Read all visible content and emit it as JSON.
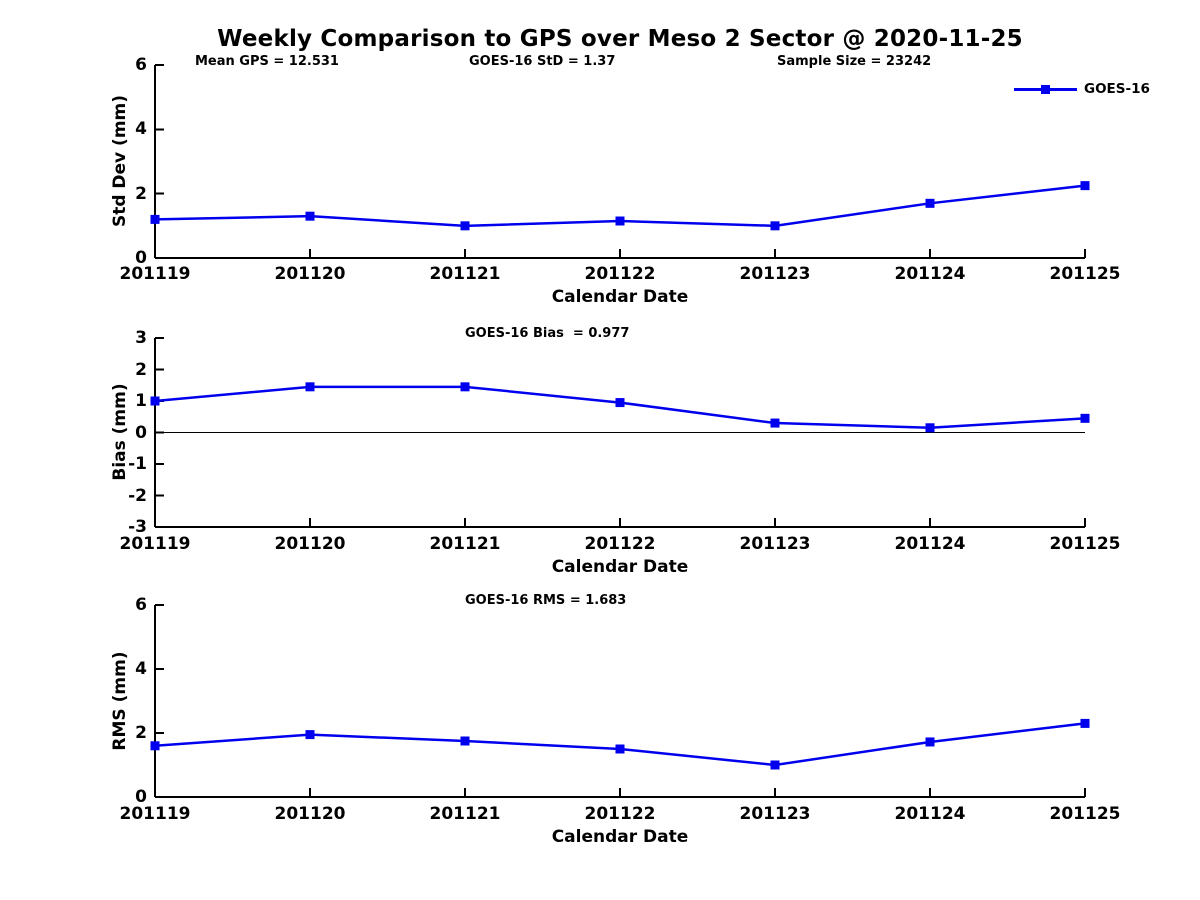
{
  "title": "Weekly Comparison to GPS over Meso 2 Sector @ 2020-11-25",
  "colors": {
    "series": "#0000EE",
    "axis": "#000000",
    "zero_line": "#000000",
    "text": "#000000",
    "background": "#FFFFFF"
  },
  "legend": {
    "label": "GOES-16",
    "position": "upper-right"
  },
  "chart_data": [
    {
      "type": "line",
      "id": "std-dev",
      "annotations": [
        "Mean GPS = 12.531",
        "GOES-16 StD = 1.37",
        "Sample Size = 23242"
      ],
      "xlabel": "Calendar Date",
      "ylabel": "Std Dev (mm)",
      "x_categories": [
        "201119",
        "201120",
        "201121",
        "201122",
        "201123",
        "201124",
        "201125"
      ],
      "series": [
        {
          "name": "GOES-16",
          "values": [
            1.2,
            1.3,
            1.0,
            1.15,
            1.0,
            1.7,
            2.25
          ]
        }
      ],
      "ylim": [
        0,
        6
      ],
      "yticks": [
        0,
        2,
        4,
        6
      ],
      "zero_line": false,
      "grid": false,
      "legend_visible": true
    },
    {
      "type": "line",
      "id": "bias",
      "annotations": [
        "GOES-16 Bias  = 0.977"
      ],
      "xlabel": "Calendar Date",
      "ylabel": "Bias (mm)",
      "x_categories": [
        "201119",
        "201120",
        "201121",
        "201122",
        "201123",
        "201124",
        "201125"
      ],
      "series": [
        {
          "name": "GOES-16",
          "values": [
            1.0,
            1.45,
            1.45,
            0.95,
            0.3,
            0.15,
            0.45
          ]
        }
      ],
      "ylim": [
        -3,
        3
      ],
      "yticks": [
        -3,
        -2,
        -1,
        0,
        1,
        2,
        3
      ],
      "zero_line": true,
      "grid": false,
      "legend_visible": false
    },
    {
      "type": "line",
      "id": "rms",
      "annotations": [
        "GOES-16 RMS = 1.683"
      ],
      "xlabel": "Calendar Date",
      "ylabel": "RMS (mm)",
      "x_categories": [
        "201119",
        "201120",
        "201121",
        "201122",
        "201123",
        "201124",
        "201125"
      ],
      "series": [
        {
          "name": "GOES-16",
          "values": [
            1.6,
            1.95,
            1.75,
            1.5,
            1.0,
            1.72,
            2.3
          ]
        }
      ],
      "ylim": [
        0,
        6
      ],
      "yticks": [
        0,
        2,
        4,
        6
      ],
      "zero_line": false,
      "grid": false,
      "legend_visible": false
    }
  ]
}
